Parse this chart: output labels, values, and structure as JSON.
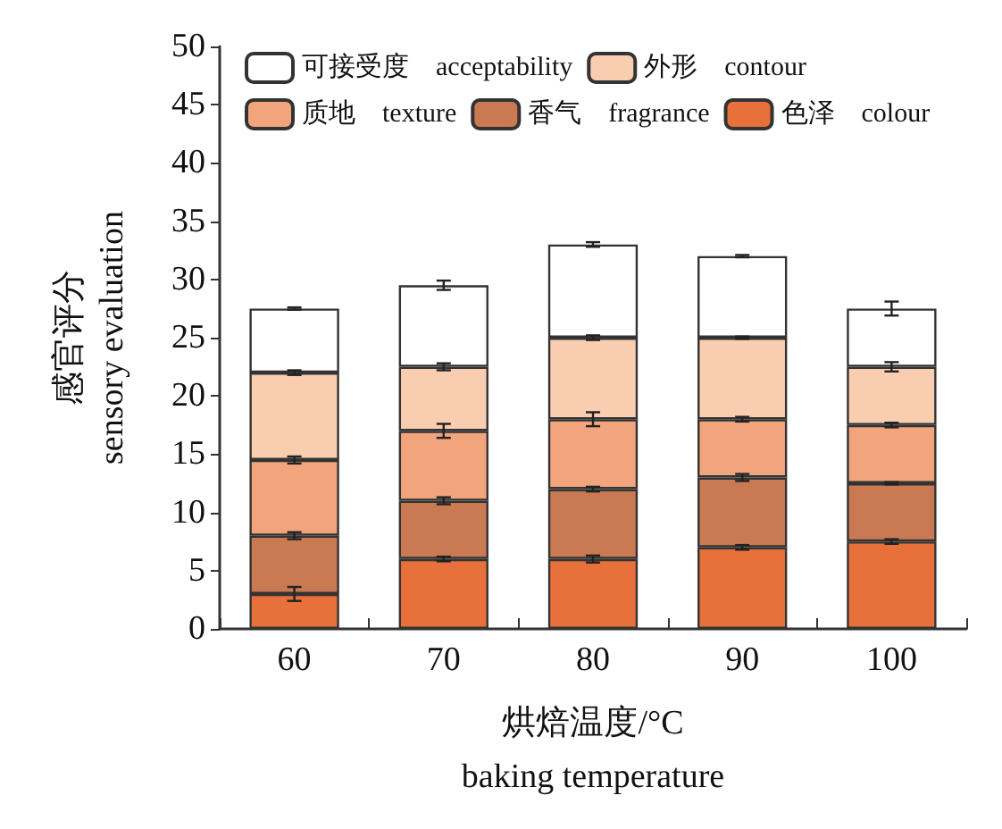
{
  "chart_data": {
    "type": "bar",
    "stacked": true,
    "xlabel": "烘焙温度/°C\nbaking temperature",
    "ylabel": "感官评分\nsensory evaluation",
    "categories": [
      "60",
      "70",
      "80",
      "90",
      "100"
    ],
    "series": [
      {
        "name": "色泽    colour",
        "color": "#e8703a",
        "values": [
          3,
          6,
          6,
          7,
          7.5
        ],
        "errors": [
          0.6,
          0.2,
          0.3,
          0.2,
          0.2
        ]
      },
      {
        "name": "香气    fragrance",
        "color": "#c97a52",
        "values": [
          5,
          5,
          6,
          6,
          5
        ],
        "errors": [
          0.3,
          0.3,
          0.2,
          0.3,
          0.1
        ]
      },
      {
        "name": "质地    texture",
        "color": "#f2a47c",
        "values": [
          6.5,
          6,
          6,
          5,
          5
        ],
        "errors": [
          0.3,
          0.6,
          0.6,
          0.2,
          0.2
        ]
      },
      {
        "name": "外形    contour",
        "color": "#f9cdb0",
        "values": [
          7.5,
          5.5,
          7,
          7,
          5
        ],
        "errors": [
          0.2,
          0.3,
          0.2,
          0.1,
          0.4
        ]
      },
      {
        "name": "可接受度    acceptability",
        "color": "#ffffff",
        "values": [
          5.5,
          7,
          8,
          7,
          5
        ],
        "errors": [
          0.1,
          0.4,
          0.2,
          0.1,
          0.6
        ]
      }
    ],
    "ylim": [
      0,
      50
    ],
    "yticks": [
      0,
      5,
      10,
      15,
      20,
      25,
      30,
      35,
      40,
      45,
      50
    ],
    "grid": false,
    "legend": "top left"
  }
}
